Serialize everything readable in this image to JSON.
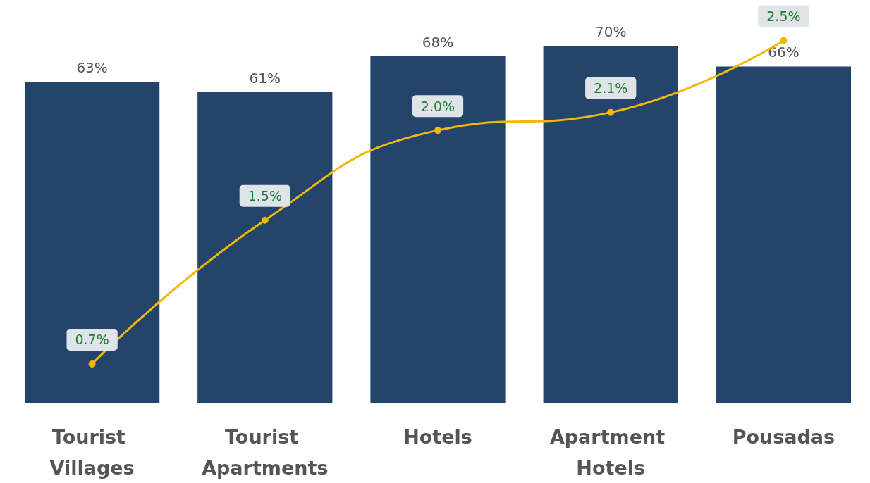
{
  "chart_data": {
    "type": "bar",
    "categories": [
      "Tourist Villages",
      "Tourist Apartments",
      "Hotels",
      "Apartment Hotels",
      "Pousadas"
    ],
    "series": [
      {
        "color": "#23446b",
        "values": [
          63,
          61,
          68,
          70,
          66
        ],
        "value_labels": [
          "63%",
          "61%",
          "68%",
          "70%",
          "66%"
        ]
      },
      {
        "type": "line",
        "axis": "y2",
        "color": "#f5b800",
        "values": [
          0.7,
          1.5,
          2.0,
          2.1,
          2.5
        ],
        "value_labels": [
          "0.7%",
          "1.5%",
          "2.0%",
          "2.1%",
          "2.5%"
        ]
      }
    ],
    "tick_labels": "x",
    "grid": false,
    "marker": "circle"
  }
}
